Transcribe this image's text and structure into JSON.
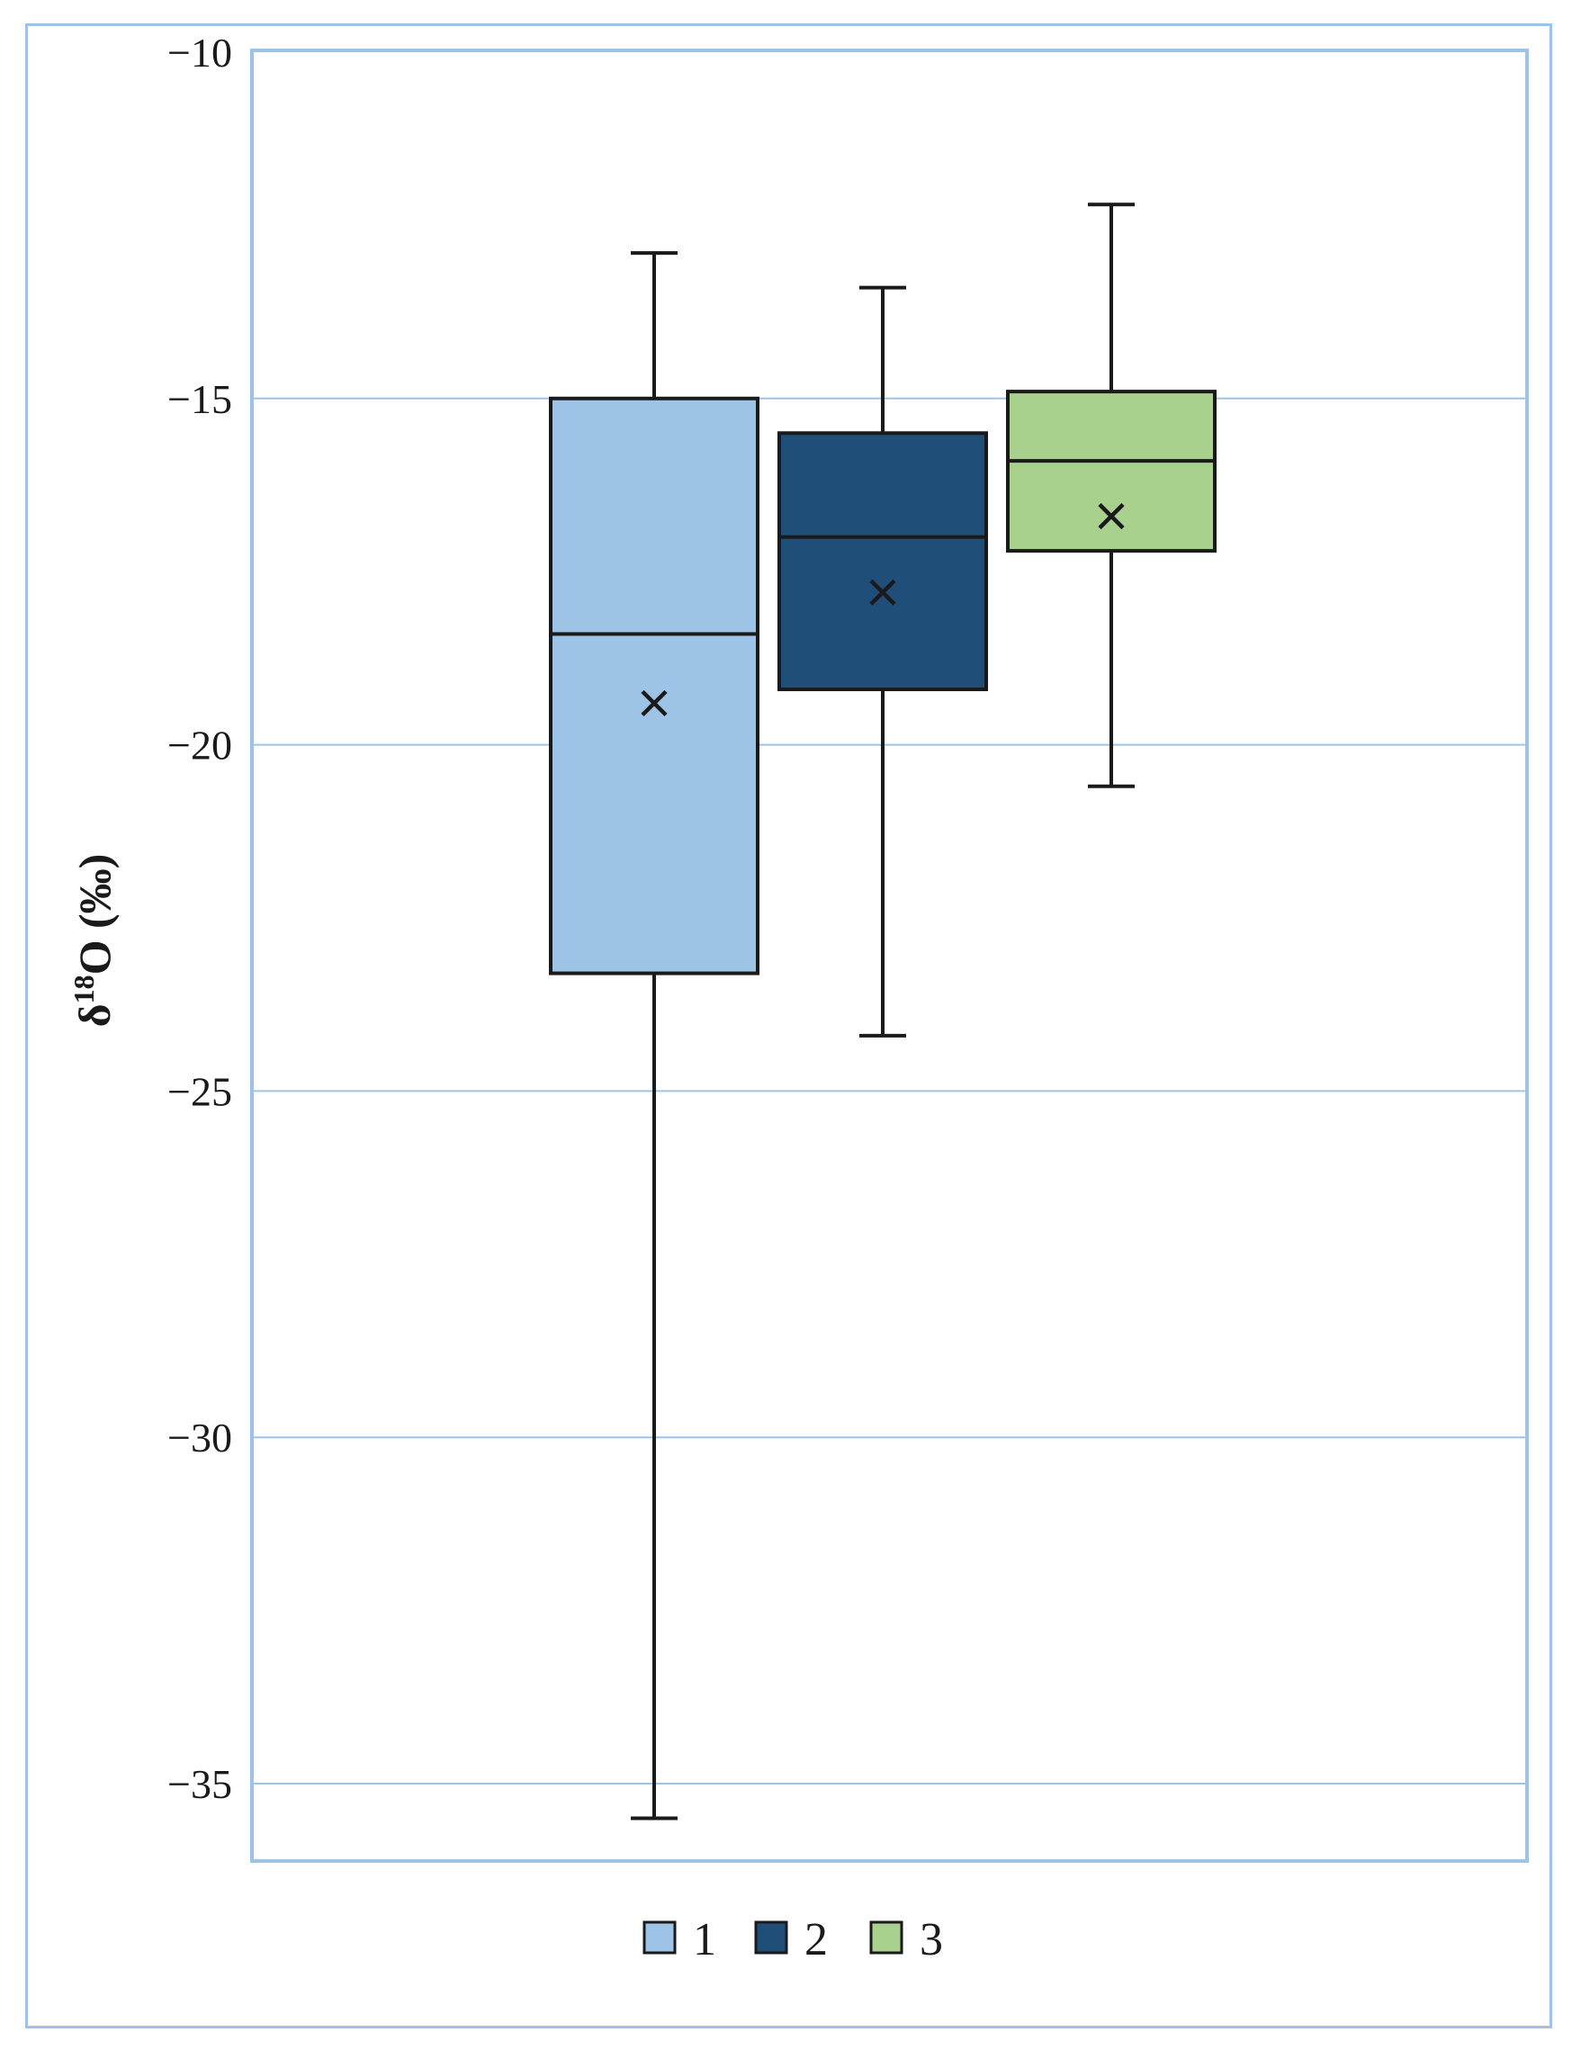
{
  "chart_data": {
    "type": "boxplot",
    "ylabel": "δ18O (‰)",
    "ylim": [
      -36,
      -10
    ],
    "yticks": [
      -10,
      -15,
      -20,
      -25,
      -30,
      -35
    ],
    "ytick_labels": [
      "−10",
      "−15",
      "−20",
      "−25",
      "−30",
      "−35"
    ],
    "grid": true,
    "legend_position": "bottom",
    "series": [
      {
        "name": "1",
        "color": "#9dc3e6",
        "min": -35.5,
        "q1": -23.3,
        "median": -18.4,
        "q3": -15.0,
        "max": -12.9,
        "mean": -19.4
      },
      {
        "name": "2",
        "color": "#1f4e79",
        "min": -24.2,
        "q1": -19.2,
        "median": -17.0,
        "q3": -15.5,
        "max": -13.4,
        "mean": -17.8
      },
      {
        "name": "3",
        "color": "#a9d18e",
        "min": -20.6,
        "q1": -17.2,
        "median": -15.9,
        "q3": -14.9,
        "max": -12.2,
        "mean": -16.7
      }
    ]
  }
}
